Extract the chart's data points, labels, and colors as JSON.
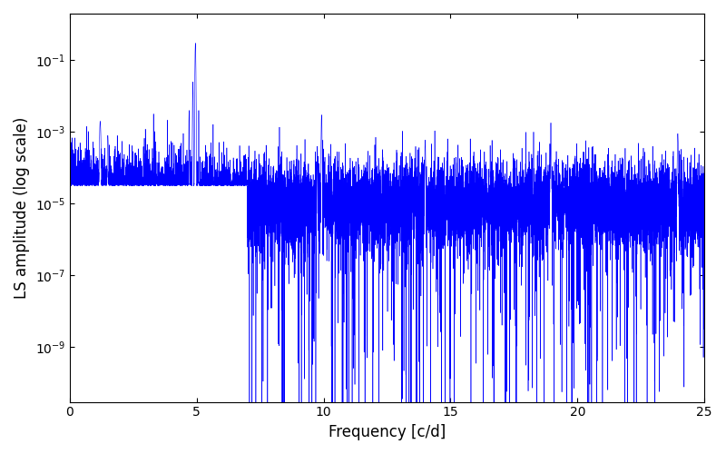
{
  "xlabel": "Frequency [c/d]",
  "ylabel": "LS amplitude (log scale)",
  "line_color": "#0000ff",
  "xlim": [
    0,
    25
  ],
  "ylim": [
    3e-11,
    2.0
  ],
  "background_color": "#ffffff",
  "figsize": [
    8.0,
    5.0
  ],
  "dpi": 100
}
